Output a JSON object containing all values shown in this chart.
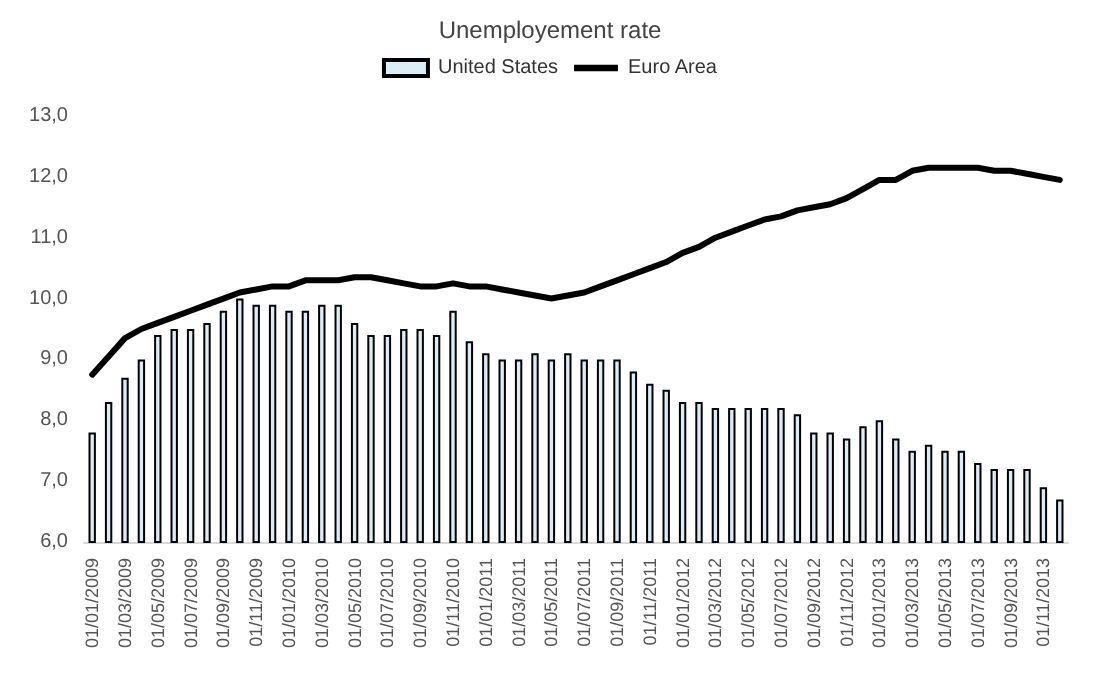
{
  "chart_data": {
    "type": "bar",
    "title": "Unemployement rate",
    "categories": [
      "01/01/2009",
      null,
      "01/03/2009",
      null,
      "01/05/2009",
      null,
      "01/07/2009",
      null,
      "01/09/2009",
      null,
      "01/11/2009",
      null,
      "01/01/2010",
      null,
      "01/03/2010",
      null,
      "01/05/2010",
      null,
      "01/07/2010",
      null,
      "01/09/2010",
      null,
      "01/11/2010",
      null,
      "01/01/2011",
      null,
      "01/03/2011",
      null,
      "01/05/2011",
      null,
      "01/07/2011",
      null,
      "01/09/2011",
      null,
      "01/11/2011",
      null,
      "01/01/2012",
      null,
      "01/03/2012",
      null,
      "01/05/2012",
      null,
      "01/07/2012",
      null,
      "01/09/2012",
      null,
      "01/11/2012",
      null,
      "01/01/2013",
      null,
      "01/03/2013",
      null,
      "01/05/2013",
      null,
      "01/07/2013",
      null,
      "01/09/2013",
      null,
      "01/11/2013",
      null
    ],
    "series": [
      {
        "name": "United States",
        "color": "#dbeef7",
        "values": [
          7.8,
          8.3,
          8.7,
          9.0,
          9.4,
          9.5,
          9.5,
          9.6,
          9.8,
          10.0,
          9.9,
          9.9,
          9.8,
          9.8,
          9.9,
          9.9,
          9.6,
          9.4,
          9.4,
          9.5,
          9.5,
          9.4,
          9.8,
          9.3,
          9.1,
          9.0,
          9.0,
          9.1,
          9.0,
          9.1,
          9.0,
          9.0,
          9.0,
          8.8,
          8.6,
          8.5,
          8.3,
          8.3,
          8.2,
          8.2,
          8.2,
          8.2,
          8.2,
          8.1,
          7.8,
          7.8,
          7.7,
          7.9,
          8.0,
          7.7,
          7.5,
          7.6,
          7.5,
          7.5,
          7.3,
          7.2,
          7.2,
          7.2,
          6.9,
          6.7
        ]
      },
      {
        "name": "Euro Area",
        "type": "line",
        "color": "#000000",
        "values": [
          8.75,
          9.05,
          9.35,
          9.5,
          9.6,
          9.7,
          9.8,
          9.9,
          10.0,
          10.1,
          10.15,
          10.2,
          10.2,
          10.3,
          10.3,
          10.3,
          10.35,
          10.35,
          10.3,
          10.25,
          10.2,
          10.2,
          10.25,
          10.2,
          10.2,
          10.15,
          10.1,
          10.05,
          10.0,
          10.05,
          10.1,
          10.2,
          10.3,
          10.4,
          10.5,
          10.6,
          10.75,
          10.85,
          11.0,
          11.1,
          11.2,
          11.3,
          11.35,
          11.45,
          11.5,
          11.55,
          11.65,
          11.8,
          11.95,
          11.95,
          12.1,
          12.15,
          12.15,
          12.15,
          12.15,
          12.1,
          12.1,
          12.05,
          12.0,
          11.95
        ]
      }
    ],
    "ylim": [
      6,
      13
    ],
    "yticks": [
      {
        "value": 6,
        "label": "6,0"
      },
      {
        "value": 7,
        "label": "7,0"
      },
      {
        "value": 8,
        "label": "8,0"
      },
      {
        "value": 9,
        "label": "9,0"
      },
      {
        "value": 10,
        "label": "10,0"
      },
      {
        "value": 11,
        "label": "11,0"
      },
      {
        "value": 12,
        "label": "12,0"
      },
      {
        "value": 13,
        "label": "13,0"
      }
    ],
    "grid": false,
    "legend": "top",
    "marker": "none",
    "line_style": "solid"
  }
}
